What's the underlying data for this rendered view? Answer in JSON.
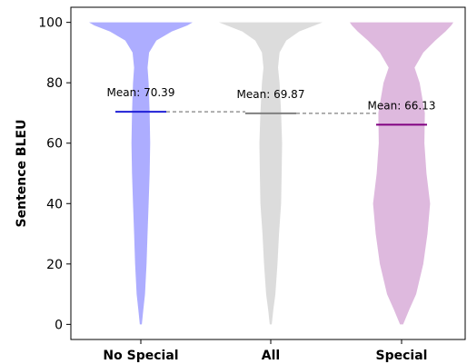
{
  "chart_data": {
    "type": "violin",
    "title": "",
    "xlabel": "",
    "ylabel": "Sentence BLEU",
    "ylim": [
      -5,
      105
    ],
    "yticks": [
      0,
      20,
      40,
      60,
      80,
      100
    ],
    "grid": false,
    "legend": "none",
    "categories": [
      "No Special",
      "All",
      "Special"
    ],
    "series": [
      {
        "category": "No Special",
        "color": "#9999ff",
        "mean_line_color": "#1f1fd6",
        "mean": 70.39,
        "mean_label": "Mean: 70.39",
        "min": 0,
        "max": 100,
        "density_profile": [
          [
            0,
            0.02
          ],
          [
            5,
            0.05
          ],
          [
            10,
            0.08
          ],
          [
            20,
            0.11
          ],
          [
            30,
            0.13
          ],
          [
            40,
            0.15
          ],
          [
            50,
            0.17
          ],
          [
            60,
            0.18
          ],
          [
            70,
            0.17
          ],
          [
            80,
            0.15
          ],
          [
            85,
            0.13
          ],
          [
            90,
            0.16
          ],
          [
            94,
            0.3
          ],
          [
            97,
            0.6
          ],
          [
            99,
            0.9
          ],
          [
            100,
            1.0
          ]
        ]
      },
      {
        "category": "All",
        "color": "#d3d3d3",
        "mean_line_color": "#808080",
        "mean": 69.87,
        "mean_label": "Mean: 69.87",
        "min": 0,
        "max": 100,
        "density_profile": [
          [
            0,
            0.02
          ],
          [
            5,
            0.05
          ],
          [
            10,
            0.09
          ],
          [
            20,
            0.13
          ],
          [
            30,
            0.16
          ],
          [
            40,
            0.2
          ],
          [
            50,
            0.21
          ],
          [
            60,
            0.22
          ],
          [
            70,
            0.2
          ],
          [
            80,
            0.17
          ],
          [
            85,
            0.14
          ],
          [
            90,
            0.17
          ],
          [
            94,
            0.3
          ],
          [
            97,
            0.55
          ],
          [
            99,
            0.85
          ],
          [
            100,
            1.0
          ]
        ]
      },
      {
        "category": "Special",
        "color": "#d6a8d6",
        "mean_line_color": "#800080",
        "mean": 66.13,
        "mean_label": "Mean: 66.13",
        "min": 0,
        "max": 100,
        "density_profile": [
          [
            0,
            0.03
          ],
          [
            5,
            0.15
          ],
          [
            10,
            0.28
          ],
          [
            20,
            0.42
          ],
          [
            30,
            0.5
          ],
          [
            40,
            0.55
          ],
          [
            50,
            0.48
          ],
          [
            60,
            0.44
          ],
          [
            70,
            0.45
          ],
          [
            80,
            0.35
          ],
          [
            85,
            0.25
          ],
          [
            90,
            0.42
          ],
          [
            94,
            0.65
          ],
          [
            97,
            0.85
          ],
          [
            99,
            0.96
          ],
          [
            100,
            1.0
          ]
        ]
      }
    ],
    "mean_connector": {
      "style": "dashed",
      "color": "#808080"
    }
  }
}
